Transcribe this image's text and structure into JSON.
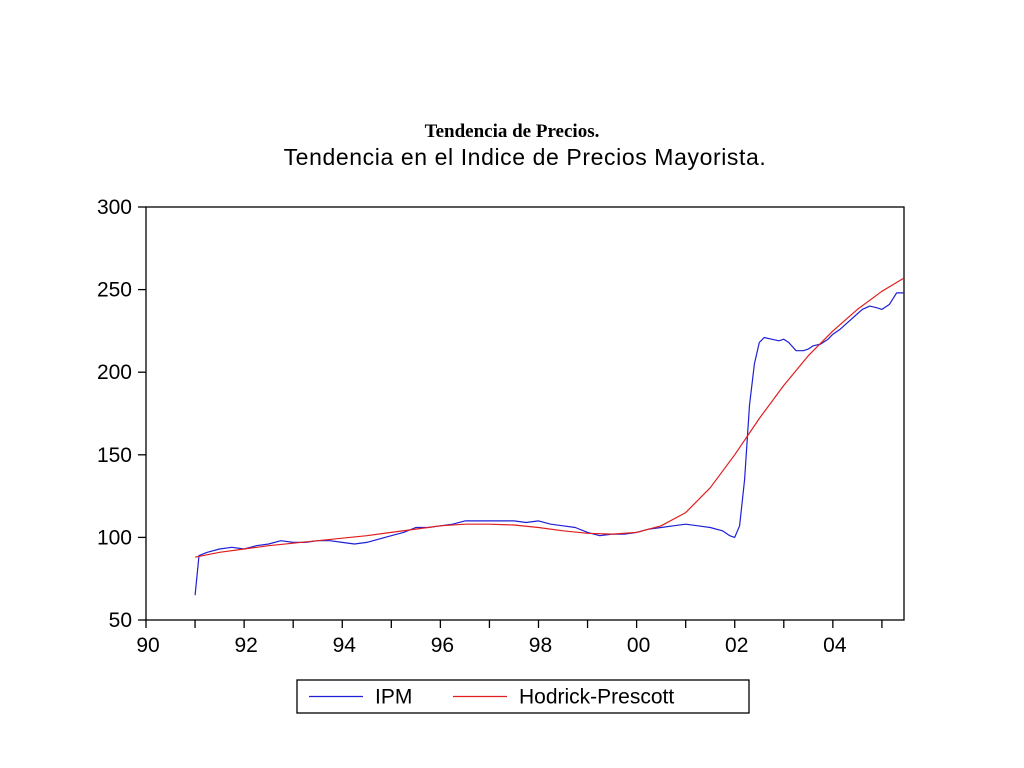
{
  "slide": {
    "title": "Tendencia de Precios."
  },
  "chart_data": {
    "type": "line",
    "title": "Tendencia en el Indice de Precios Mayorista.",
    "xlabel": "",
    "ylabel": "",
    "ylim": [
      50,
      300
    ],
    "xlim": [
      1990.0,
      2005.45
    ],
    "yticks": [
      50,
      100,
      150,
      200,
      250,
      300
    ],
    "xticks": [
      {
        "value": 1990,
        "label": "90"
      },
      {
        "value": 1992,
        "label": "92"
      },
      {
        "value": 1994,
        "label": "94"
      },
      {
        "value": 1996,
        "label": "96"
      },
      {
        "value": 1998,
        "label": "98"
      },
      {
        "value": 2000,
        "label": "00"
      },
      {
        "value": 2002,
        "label": "02"
      },
      {
        "value": 2004,
        "label": "04"
      }
    ],
    "grid": false,
    "legend_position": "bottom-center",
    "series": [
      {
        "name": "IPM",
        "color": "#1f1fd6",
        "x": [
          1991.0,
          1991.08,
          1991.25,
          1991.5,
          1991.75,
          1992.0,
          1992.25,
          1992.5,
          1992.75,
          1993.0,
          1993.25,
          1993.5,
          1993.75,
          1994.0,
          1994.25,
          1994.5,
          1994.75,
          1995.0,
          1995.25,
          1995.5,
          1995.75,
          1996.0,
          1996.25,
          1996.5,
          1996.75,
          1997.0,
          1997.25,
          1997.5,
          1997.75,
          1998.0,
          1998.25,
          1998.5,
          1998.75,
          1999.0,
          1999.25,
          1999.5,
          1999.75,
          2000.0,
          2000.25,
          2000.5,
          2000.75,
          2001.0,
          2001.25,
          2001.5,
          2001.75,
          2001.9,
          2002.0,
          2002.1,
          2002.2,
          2002.3,
          2002.4,
          2002.5,
          2002.6,
          2002.75,
          2002.9,
          2003.0,
          2003.1,
          2003.25,
          2003.4,
          2003.5,
          2003.6,
          2003.75,
          2003.9,
          2004.0,
          2004.15,
          2004.3,
          2004.45,
          2004.6,
          2004.75,
          2004.9,
          2005.0,
          2005.15,
          2005.3,
          2005.45
        ],
        "values": [
          65,
          89,
          91,
          93,
          94,
          93,
          95,
          96,
          98,
          97,
          97,
          98,
          98,
          97,
          96,
          97,
          99,
          101,
          103,
          106,
          106,
          107,
          108,
          110,
          110,
          110,
          110,
          110,
          109,
          110,
          108,
          107,
          106,
          103,
          101,
          102,
          102,
          103,
          105,
          106,
          107,
          108,
          107,
          106,
          104,
          101,
          100,
          107,
          135,
          180,
          205,
          218,
          221,
          220,
          219,
          220,
          218,
          213,
          213,
          214,
          216,
          217,
          220,
          223,
          226,
          230,
          234,
          238,
          240,
          239,
          238,
          241,
          248,
          248
        ]
      },
      {
        "name": "Hodrick-Prescott",
        "color": "#e01e1e",
        "x": [
          1991.0,
          1991.5,
          1992.0,
          1992.5,
          1993.0,
          1993.5,
          1994.0,
          1994.5,
          1995.0,
          1995.5,
          1996.0,
          1996.5,
          1997.0,
          1997.5,
          1998.0,
          1998.5,
          1999.0,
          1999.5,
          2000.0,
          2000.5,
          2001.0,
          2001.5,
          2002.0,
          2002.5,
          2003.0,
          2003.5,
          2004.0,
          2004.5,
          2005.0,
          2005.45
        ],
        "values": [
          88,
          91,
          93,
          95,
          96.5,
          98,
          99.5,
          101,
          103,
          105,
          107,
          108,
          108,
          107.5,
          106,
          104,
          102.5,
          102,
          103,
          107,
          115,
          130,
          150,
          172,
          192,
          210,
          225,
          238,
          249,
          257
        ]
      }
    ]
  }
}
